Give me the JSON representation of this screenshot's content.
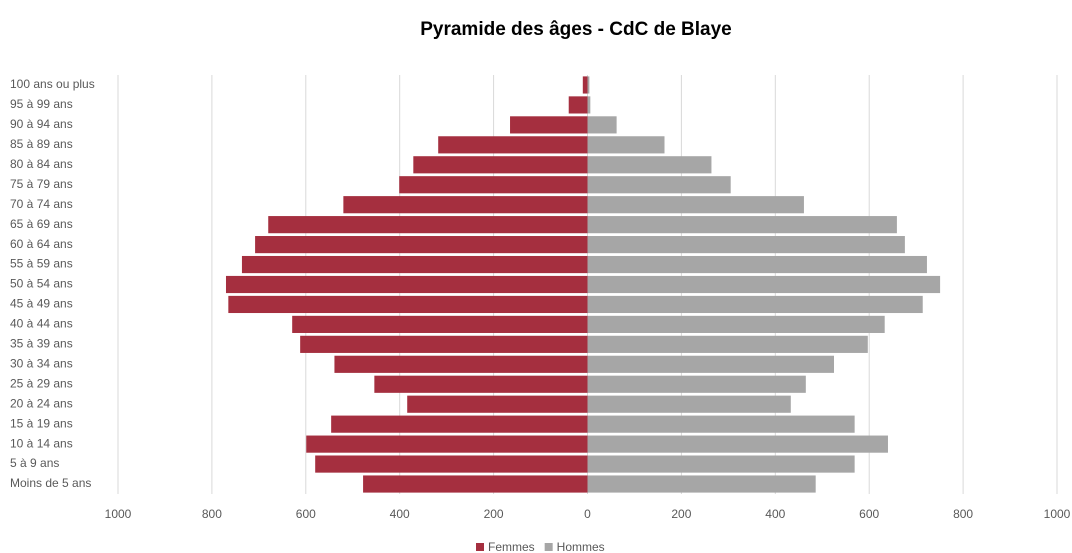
{
  "chart_data": {
    "type": "pyramid",
    "title": "Pyramide des âges - CdC de Blaye",
    "categories": [
      "100 ans ou plus",
      "95 à 99 ans",
      "90 à 94 ans",
      "85 à 89 ans",
      "80 à 84 ans",
      "75 à 79 ans",
      "70 à 74 ans",
      "65 à 69 ans",
      "60 à 64 ans",
      "55 à 59 ans",
      "50 à 54 ans",
      "45 à 49 ans",
      "40 à 44 ans",
      "35 à 39 ans",
      "30 à 34 ans",
      "25 à 29 ans",
      "20 à 24 ans",
      "15 à 19 ans",
      "10 à 14 ans",
      "5 à 9 ans",
      "Moins de 5 ans"
    ],
    "series": [
      {
        "name": "Femmes",
        "color": "#a52f3f",
        "values": [
          -10,
          -40,
          -165,
          -318,
          -371,
          -401,
          -520,
          -680,
          -708,
          -736,
          -770,
          -765,
          -629,
          -612,
          -539,
          -454,
          -384,
          -546,
          -599,
          -580,
          -478
        ]
      },
      {
        "name": "Hommes",
        "color": "#a6a6a6",
        "values": [
          4,
          6,
          62,
          164,
          264,
          305,
          461,
          659,
          676,
          723,
          751,
          714,
          633,
          597,
          525,
          465,
          433,
          569,
          640,
          569,
          486
        ]
      }
    ],
    "xlim": [
      -1000,
      1000
    ],
    "xticks": [
      {
        "value": -1000,
        "label": "1000"
      },
      {
        "value": -800,
        "label": "800"
      },
      {
        "value": -600,
        "label": "600"
      },
      {
        "value": -400,
        "label": "400"
      },
      {
        "value": -200,
        "label": "200"
      },
      0,
      200,
      400,
      600,
      800,
      1000
    ],
    "grid": true,
    "legend": "bottom"
  }
}
